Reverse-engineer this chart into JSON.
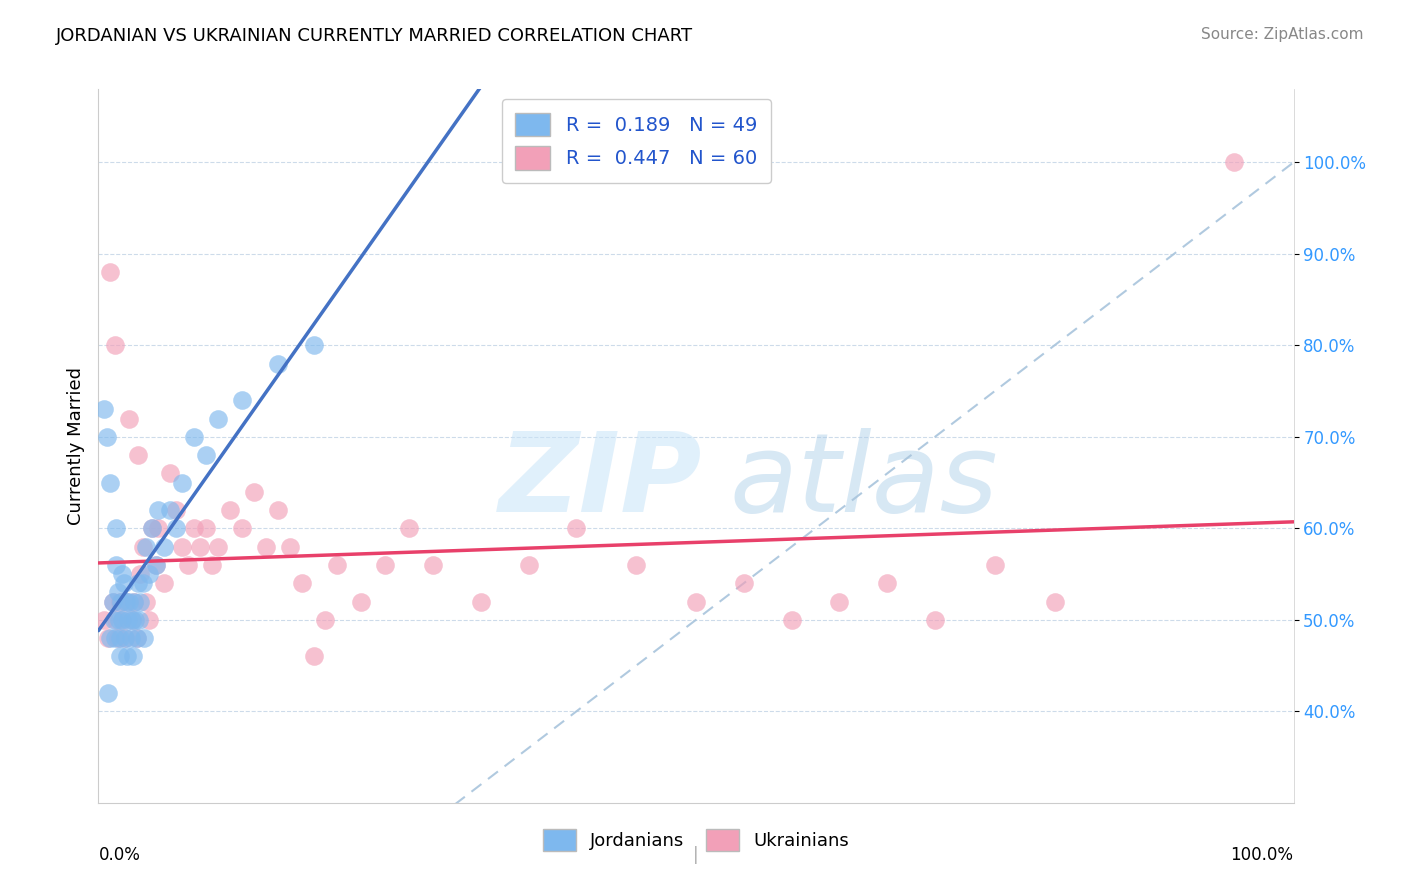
{
  "title": "JORDANIAN VS UKRAINIAN CURRENTLY MARRIED CORRELATION CHART",
  "source": "Source: ZipAtlas.com",
  "ylabel": "Currently Married",
  "r_jordan": 0.189,
  "n_jordan": 49,
  "r_ukraine": 0.447,
  "n_ukraine": 60,
  "jordan_color": "#7EB8EE",
  "ukraine_color": "#F2A0B8",
  "jordan_line_color": "#4472C4",
  "ukraine_line_color": "#E8406A",
  "diag_line_color": "#A8C4DC",
  "background_color": "#FFFFFF",
  "xlim": [
    0,
    1
  ],
  "ylim": [
    0.3,
    1.08
  ],
  "ytick_positions": [
    0.4,
    0.5,
    0.6,
    0.7,
    0.8,
    0.9,
    1.0
  ],
  "ytick_labels": [
    "40.0%",
    "50.0%",
    "60.0%",
    "70.0%",
    "80.0%",
    "90.0%",
    "100.0%"
  ],
  "jordan_x": [
    0.005,
    0.007,
    0.008,
    0.01,
    0.01,
    0.012,
    0.013,
    0.014,
    0.015,
    0.015,
    0.016,
    0.017,
    0.018,
    0.018,
    0.019,
    0.02,
    0.02,
    0.021,
    0.022,
    0.023,
    0.024,
    0.025,
    0.026,
    0.027,
    0.028,
    0.029,
    0.03,
    0.031,
    0.032,
    0.033,
    0.034,
    0.035,
    0.037,
    0.038,
    0.04,
    0.042,
    0.045,
    0.048,
    0.05,
    0.055,
    0.06,
    0.065,
    0.07,
    0.08,
    0.09,
    0.1,
    0.12,
    0.15,
    0.18
  ],
  "jordan_y": [
    0.73,
    0.7,
    0.42,
    0.65,
    0.48,
    0.52,
    0.5,
    0.48,
    0.6,
    0.56,
    0.53,
    0.5,
    0.48,
    0.46,
    0.52,
    0.55,
    0.5,
    0.54,
    0.48,
    0.52,
    0.46,
    0.5,
    0.52,
    0.48,
    0.5,
    0.46,
    0.52,
    0.5,
    0.48,
    0.54,
    0.5,
    0.52,
    0.54,
    0.48,
    0.58,
    0.55,
    0.6,
    0.56,
    0.62,
    0.58,
    0.62,
    0.6,
    0.65,
    0.7,
    0.68,
    0.72,
    0.74,
    0.78,
    0.8
  ],
  "ukraine_x": [
    0.005,
    0.008,
    0.01,
    0.012,
    0.014,
    0.015,
    0.016,
    0.018,
    0.02,
    0.022,
    0.024,
    0.026,
    0.028,
    0.03,
    0.032,
    0.033,
    0.035,
    0.037,
    0.04,
    0.042,
    0.045,
    0.048,
    0.05,
    0.055,
    0.06,
    0.065,
    0.07,
    0.075,
    0.08,
    0.085,
    0.09,
    0.095,
    0.1,
    0.11,
    0.12,
    0.13,
    0.14,
    0.15,
    0.16,
    0.17,
    0.18,
    0.19,
    0.2,
    0.22,
    0.24,
    0.26,
    0.28,
    0.32,
    0.36,
    0.4,
    0.45,
    0.5,
    0.54,
    0.58,
    0.62,
    0.66,
    0.7,
    0.75,
    0.8,
    0.95
  ],
  "ukraine_y": [
    0.5,
    0.48,
    0.88,
    0.52,
    0.8,
    0.5,
    0.48,
    0.52,
    0.5,
    0.48,
    0.52,
    0.72,
    0.5,
    0.52,
    0.48,
    0.68,
    0.55,
    0.58,
    0.52,
    0.5,
    0.6,
    0.56,
    0.6,
    0.54,
    0.66,
    0.62,
    0.58,
    0.56,
    0.6,
    0.58,
    0.6,
    0.56,
    0.58,
    0.62,
    0.6,
    0.64,
    0.58,
    0.62,
    0.58,
    0.54,
    0.46,
    0.5,
    0.56,
    0.52,
    0.56,
    0.6,
    0.56,
    0.52,
    0.56,
    0.6,
    0.56,
    0.52,
    0.54,
    0.5,
    0.52,
    0.54,
    0.5,
    0.56,
    0.52,
    1.0
  ]
}
